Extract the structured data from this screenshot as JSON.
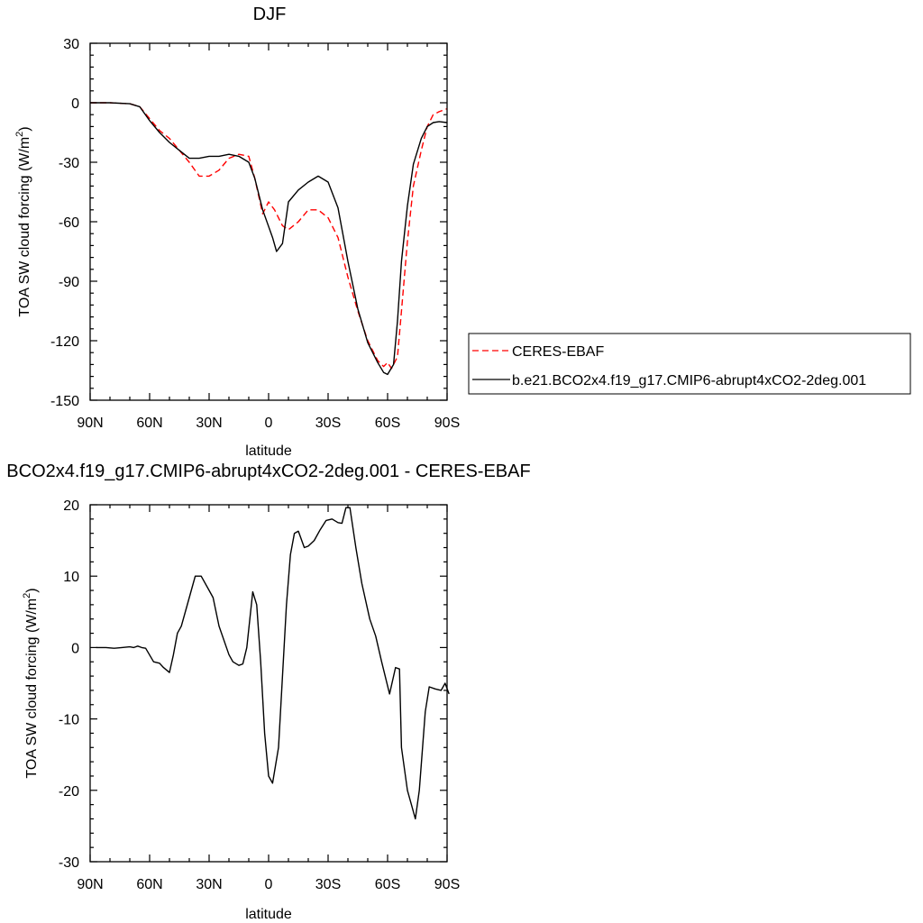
{
  "chart_data": [
    {
      "type": "line",
      "title": "DJF",
      "xlabel": "latitude",
      "ylabel": "TOA SW cloud forcing (W/m",
      "ylabel_sup": "2",
      "ylabel_end": ")",
      "x_is_latitude_north_to_south": true,
      "xlim": [
        90,
        -90
      ],
      "ylim": [
        -150,
        30
      ],
      "x_ticks": [
        90,
        60,
        30,
        0,
        -30,
        -60,
        -90
      ],
      "x_tick_labels": [
        "90N",
        "60N",
        "30N",
        "0",
        "30S",
        "60S",
        "90S"
      ],
      "y_ticks": [
        30,
        0,
        -30,
        -60,
        -90,
        -120,
        -150
      ],
      "y_tick_labels": [
        "30",
        "0",
        "-30",
        "-60",
        "-90",
        "-120",
        "-150"
      ],
      "grid": false,
      "legend_position": "right",
      "series": [
        {
          "name": "CERES-EBAF",
          "color": "#ff0000",
          "style": "dashed",
          "points": [
            [
              90,
              0
            ],
            [
              80,
              0
            ],
            [
              70,
              -0.5
            ],
            [
              65,
              -2
            ],
            [
              60,
              -8
            ],
            [
              55,
              -14
            ],
            [
              50,
              -18
            ],
            [
              45,
              -24
            ],
            [
              40,
              -30
            ],
            [
              35,
              -37
            ],
            [
              30,
              -37
            ],
            [
              25,
              -34
            ],
            [
              20,
              -28
            ],
            [
              15,
              -26
            ],
            [
              10,
              -27
            ],
            [
              7,
              -38
            ],
            [
              3,
              -56
            ],
            [
              0,
              -50
            ],
            [
              -3,
              -54
            ],
            [
              -7,
              -62
            ],
            [
              -10,
              -64
            ],
            [
              -15,
              -60
            ],
            [
              -20,
              -54
            ],
            [
              -25,
              -54
            ],
            [
              -30,
              -58
            ],
            [
              -35,
              -68
            ],
            [
              -40,
              -88
            ],
            [
              -45,
              -105
            ],
            [
              -50,
              -120
            ],
            [
              -55,
              -130
            ],
            [
              -58,
              -133
            ],
            [
              -60,
              -131
            ],
            [
              -62,
              -134
            ],
            [
              -65,
              -128
            ],
            [
              -67,
              -105
            ],
            [
              -70,
              -70
            ],
            [
              -73,
              -42
            ],
            [
              -77,
              -24
            ],
            [
              -80,
              -12
            ],
            [
              -83,
              -6
            ],
            [
              -86,
              -4.5
            ],
            [
              -90,
              -3
            ]
          ]
        },
        {
          "name": "b.e21.BCO2x4.f19_g17.CMIP6-abrupt4xCO2-2deg.001",
          "color": "#000000",
          "style": "solid",
          "points": [
            [
              90,
              0
            ],
            [
              80,
              0
            ],
            [
              70,
              -0.5
            ],
            [
              65,
              -2
            ],
            [
              60,
              -9
            ],
            [
              55,
              -15
            ],
            [
              50,
              -20
            ],
            [
              45,
              -24
            ],
            [
              40,
              -28
            ],
            [
              35,
              -28
            ],
            [
              30,
              -27
            ],
            [
              25,
              -27
            ],
            [
              20,
              -26
            ],
            [
              15,
              -27
            ],
            [
              10,
              -30
            ],
            [
              7,
              -38
            ],
            [
              3,
              -54
            ],
            [
              -2,
              -68
            ],
            [
              -4,
              -75
            ],
            [
              -7,
              -71
            ],
            [
              -10,
              -50
            ],
            [
              -15,
              -44
            ],
            [
              -20,
              -40
            ],
            [
              -25,
              -37
            ],
            [
              -30,
              -40
            ],
            [
              -35,
              -53
            ],
            [
              -40,
              -80
            ],
            [
              -45,
              -104
            ],
            [
              -50,
              -121
            ],
            [
              -55,
              -131
            ],
            [
              -58,
              -136
            ],
            [
              -60,
              -137
            ],
            [
              -63,
              -132
            ],
            [
              -65,
              -110
            ],
            [
              -67,
              -80
            ],
            [
              -70,
              -52
            ],
            [
              -73,
              -31
            ],
            [
              -77,
              -18
            ],
            [
              -80,
              -12
            ],
            [
              -83,
              -10
            ],
            [
              -86,
              -9.5
            ],
            [
              -90,
              -10
            ]
          ]
        }
      ]
    },
    {
      "type": "line",
      "title": "BCO2x4.f19_g17.CMIP6-abrupt4xCO2-2deg.001 - CERES-EBAF",
      "xlabel": "latitude",
      "ylabel": "TOA SW cloud forcing (W/m",
      "ylabel_sup": "2",
      "ylabel_end": ")",
      "x_is_latitude_north_to_south": true,
      "xlim": [
        90,
        -90
      ],
      "ylim": [
        -30,
        20
      ],
      "x_ticks": [
        90,
        60,
        30,
        0,
        -30,
        -60,
        -90
      ],
      "x_tick_labels": [
        "90N",
        "60N",
        "30N",
        "0",
        "30S",
        "60S",
        "90S"
      ],
      "y_ticks": [
        20,
        10,
        0,
        -10,
        -20,
        -30
      ],
      "y_tick_labels": [
        "20",
        "10",
        "0",
        "-10",
        "-20",
        "-30"
      ],
      "grid": false,
      "series": [
        {
          "color": "#000000",
          "style": "solid",
          "points": [
            [
              87,
              0
            ],
            [
              82,
              0
            ],
            [
              78,
              -0.1
            ],
            [
              74,
              0
            ],
            [
              70,
              0.1
            ],
            [
              68,
              0
            ],
            [
              66,
              0.2
            ],
            [
              64,
              0
            ],
            [
              62,
              -0.1
            ],
            [
              58,
              -2
            ],
            [
              55,
              -2.2
            ],
            [
              53,
              -2.8
            ],
            [
              50,
              -3.5
            ],
            [
              48,
              -1
            ],
            [
              46,
              2
            ],
            [
              44,
              3
            ],
            [
              40,
              7
            ],
            [
              37,
              10
            ],
            [
              34,
              10
            ],
            [
              30,
              8
            ],
            [
              28,
              7
            ],
            [
              25,
              3
            ],
            [
              20,
              -1
            ],
            [
              18,
              -2
            ],
            [
              15,
              -2.5
            ],
            [
              13,
              -2.3
            ],
            [
              11,
              0
            ],
            [
              8,
              7.8
            ],
            [
              6,
              6
            ],
            [
              4,
              -2
            ],
            [
              2,
              -12
            ],
            [
              0,
              -18
            ],
            [
              -2,
              -19
            ],
            [
              -5,
              -14
            ],
            [
              -9,
              6
            ],
            [
              -11,
              13
            ],
            [
              -13,
              16
            ],
            [
              -15,
              16.3
            ],
            [
              -18,
              14
            ],
            [
              -20,
              14.2
            ],
            [
              -23,
              15
            ],
            [
              -26,
              16.5
            ],
            [
              -29,
              17.8
            ],
            [
              -32,
              18
            ],
            [
              -35,
              17.5
            ],
            [
              -37,
              17.4
            ],
            [
              -39,
              19.6
            ],
            [
              -41,
              19.6
            ],
            [
              -44,
              14
            ],
            [
              -47,
              9
            ],
            [
              -51,
              4
            ],
            [
              -54,
              1.6
            ],
            [
              -57,
              -2
            ],
            [
              -61,
              -6.5
            ],
            [
              -64,
              -2.8
            ],
            [
              -66,
              -3
            ],
            [
              -67,
              -14
            ],
            [
              -70,
              -20
            ],
            [
              -72,
              -22
            ],
            [
              -74,
              -24
            ],
            [
              -76,
              -20
            ],
            [
              -79,
              -9
            ],
            [
              -81,
              -5.5
            ],
            [
              -84,
              -5.8
            ],
            [
              -87,
              -6
            ],
            [
              -89,
              -5
            ],
            [
              -91,
              -6.5
            ]
          ]
        }
      ]
    }
  ]
}
